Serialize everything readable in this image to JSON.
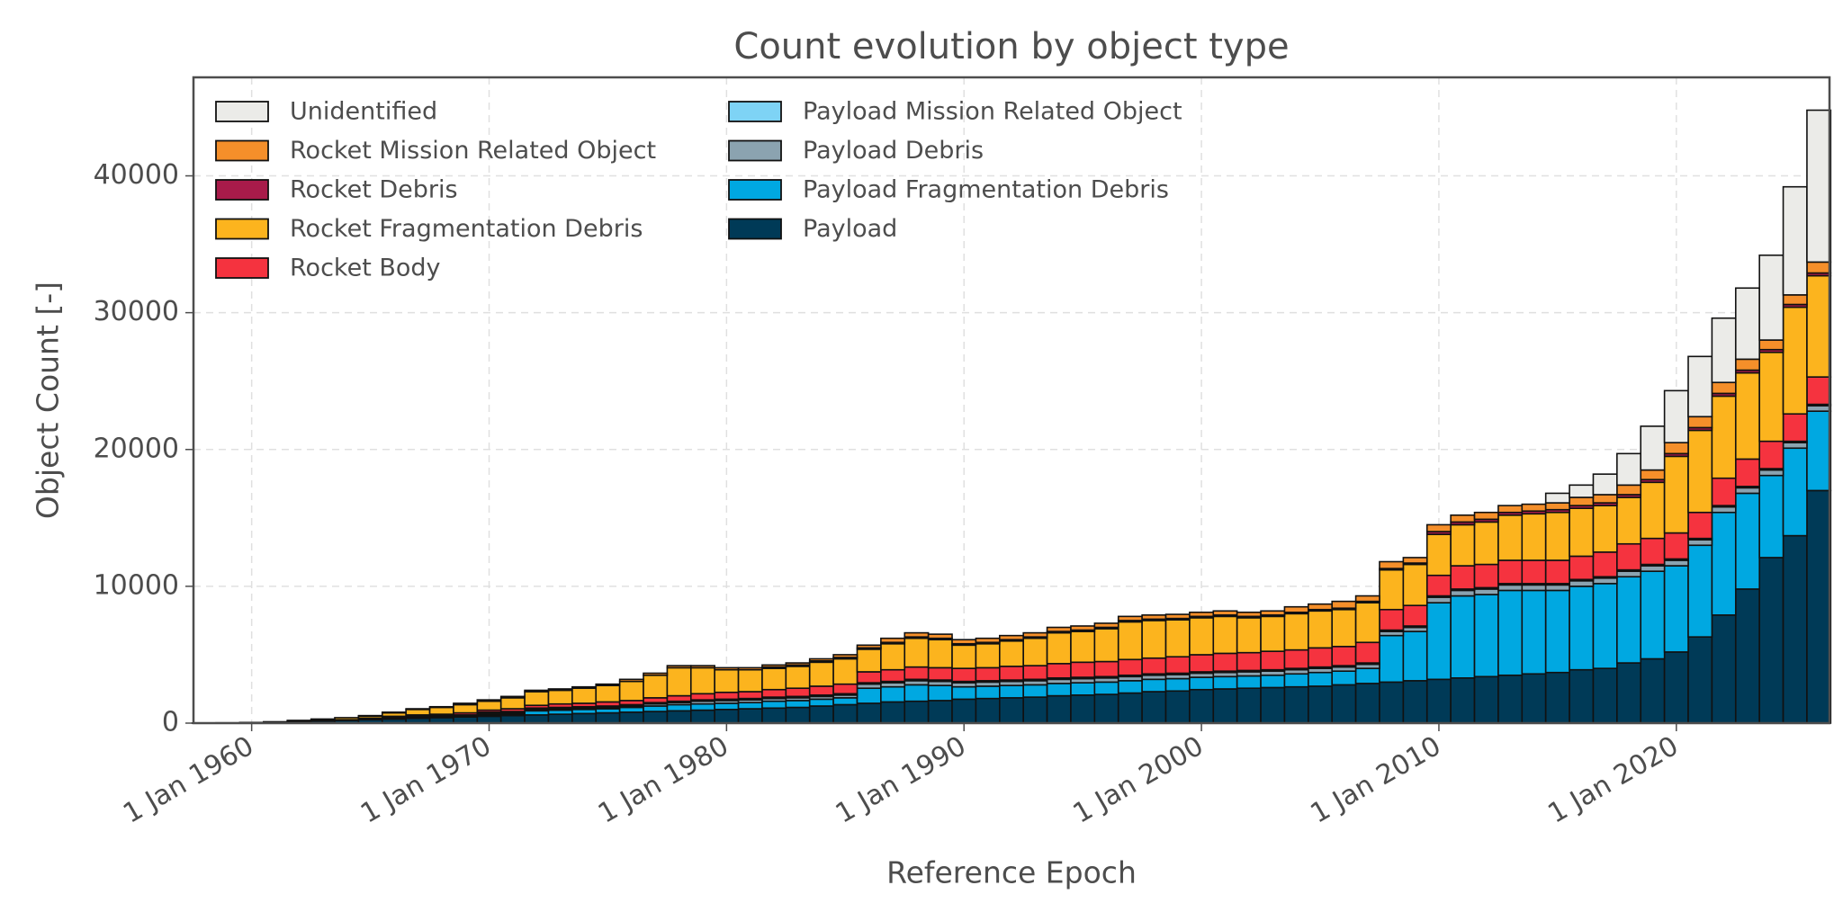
{
  "chart_data": {
    "type": "stacked_bar",
    "title": "Count evolution by object type",
    "xlabel": "Reference Epoch",
    "ylabel": "Object Count [-]",
    "legend": "upper left",
    "grid": true,
    "xlim": [
      1957.55,
      2026.45
    ],
    "ylim": [
      0,
      47200
    ],
    "yticks": [
      0,
      10000,
      20000,
      30000,
      40000
    ],
    "xticks": [
      {
        "value": 1960,
        "label": "1 Jan 1960"
      },
      {
        "value": 1970,
        "label": "1 Jan 1970"
      },
      {
        "value": 1980,
        "label": "1 Jan 1980"
      },
      {
        "value": 1990,
        "label": "1 Jan 1990"
      },
      {
        "value": 2000,
        "label": "1 Jan 2000"
      },
      {
        "value": 2010,
        "label": "1 Jan 2010"
      },
      {
        "value": 2020,
        "label": "1 Jan 2020"
      }
    ],
    "x": [
      1958,
      1959,
      1960,
      1961,
      1962,
      1963,
      1964,
      1965,
      1966,
      1967,
      1968,
      1969,
      1970,
      1971,
      1972,
      1973,
      1974,
      1975,
      1976,
      1977,
      1978,
      1979,
      1980,
      1981,
      1982,
      1983,
      1984,
      1985,
      1986,
      1987,
      1988,
      1989,
      1990,
      1991,
      1992,
      1993,
      1994,
      1995,
      1996,
      1997,
      1998,
      1999,
      2000,
      2001,
      2002,
      2003,
      2004,
      2005,
      2006,
      2007,
      2008,
      2009,
      2010,
      2011,
      2012,
      2013,
      2014,
      2015,
      2016,
      2017,
      2018,
      2019,
      2020,
      2021,
      2022,
      2023,
      2024,
      2025,
      2026
    ],
    "series": [
      {
        "name": "Payload",
        "color": "#003a57",
        "values": [
          5,
          10,
          30,
          50,
          100,
          150,
          200,
          250,
          300,
          350,
          400,
          450,
          500,
          550,
          600,
          650,
          700,
          750,
          800,
          850,
          900,
          950,
          1000,
          1050,
          1100,
          1150,
          1250,
          1350,
          1450,
          1550,
          1600,
          1650,
          1750,
          1800,
          1850,
          1900,
          2000,
          2050,
          2100,
          2200,
          2300,
          2350,
          2450,
          2500,
          2550,
          2600,
          2650,
          2700,
          2800,
          2900,
          3000,
          3100,
          3200,
          3300,
          3400,
          3500,
          3600,
          3700,
          3900,
          4000,
          4400,
          4700,
          5200,
          6300,
          7900,
          9800,
          12100,
          13700,
          17000
        ]
      },
      {
        "name": "Payload Fragmentation Debris",
        "color": "#00a8e1",
        "values": [
          0,
          0,
          0,
          0,
          0,
          0,
          0,
          0,
          0,
          50,
          50,
          50,
          100,
          100,
          300,
          300,
          300,
          300,
          350,
          400,
          450,
          450,
          450,
          450,
          500,
          500,
          500,
          500,
          1100,
          1100,
          1200,
          1100,
          900,
          900,
          900,
          900,
          900,
          900,
          900,
          900,
          900,
          900,
          900,
          900,
          900,
          900,
          950,
          1000,
          1000,
          1100,
          3400,
          3600,
          5600,
          6000,
          6000,
          6200,
          6100,
          6000,
          6100,
          6200,
          6300,
          6400,
          6300,
          6700,
          7500,
          7000,
          6000,
          6400,
          5800
        ]
      },
      {
        "name": "Payload Debris",
        "color": "#8ba3b0",
        "values": [
          0,
          0,
          0,
          0,
          0,
          0,
          0,
          0,
          50,
          50,
          50,
          50,
          100,
          100,
          100,
          100,
          100,
          100,
          100,
          150,
          150,
          200,
          200,
          200,
          200,
          200,
          200,
          200,
          300,
          300,
          300,
          300,
          300,
          300,
          300,
          300,
          300,
          300,
          300,
          300,
          300,
          300,
          300,
          300,
          300,
          300,
          300,
          300,
          300,
          300,
          300,
          300,
          400,
          400,
          400,
          400,
          400,
          400,
          400,
          400,
          400,
          400,
          400,
          400,
          400,
          400,
          400,
          400,
          400
        ]
      },
      {
        "name": "Payload Mission Related Object",
        "color": "#7ed3f5",
        "values": [
          0,
          0,
          0,
          0,
          0,
          0,
          0,
          50,
          50,
          50,
          50,
          50,
          100,
          100,
          100,
          100,
          100,
          100,
          100,
          100,
          100,
          100,
          100,
          100,
          100,
          100,
          100,
          100,
          100,
          100,
          100,
          100,
          100,
          100,
          100,
          100,
          100,
          100,
          100,
          100,
          100,
          100,
          100,
          100,
          100,
          100,
          100,
          100,
          100,
          100,
          100,
          100,
          100,
          100,
          100,
          100,
          100,
          100,
          100,
          100,
          100,
          100,
          100,
          100,
          100,
          100,
          100,
          100,
          100
        ]
      },
      {
        "name": "Rocket Body",
        "color": "#f5333f",
        "values": [
          5,
          10,
          10,
          20,
          50,
          50,
          50,
          50,
          100,
          100,
          100,
          150,
          150,
          200,
          200,
          250,
          250,
          300,
          300,
          350,
          400,
          450,
          500,
          500,
          550,
          600,
          650,
          700,
          800,
          850,
          900,
          900,
          950,
          950,
          1000,
          1000,
          1050,
          1100,
          1100,
          1150,
          1150,
          1200,
          1250,
          1300,
          1300,
          1350,
          1350,
          1400,
          1400,
          1500,
          1500,
          1500,
          1500,
          1700,
          1700,
          1700,
          1700,
          1700,
          1700,
          1800,
          1900,
          1900,
          1900,
          1900,
          2000,
          2000,
          2000,
          2000,
          2000
        ]
      },
      {
        "name": "Rocket Fragmentation Debris",
        "color": "#fcb41e",
        "values": [
          0,
          0,
          10,
          30,
          50,
          100,
          150,
          150,
          250,
          400,
          500,
          600,
          650,
          800,
          1000,
          1000,
          1100,
          1200,
          1400,
          1650,
          2050,
          1900,
          1650,
          1600,
          1550,
          1600,
          1750,
          1850,
          1650,
          1900,
          2100,
          2050,
          1700,
          1750,
          1850,
          2000,
          2250,
          2250,
          2400,
          2750,
          2750,
          2700,
          2700,
          2700,
          2550,
          2550,
          2650,
          2700,
          2700,
          2900,
          2900,
          3000,
          3000,
          3000,
          3100,
          3300,
          3400,
          3500,
          3500,
          3400,
          3400,
          4100,
          5600,
          6000,
          6000,
          6300,
          6500,
          7800,
          7400
        ]
      },
      {
        "name": "Rocket Debris",
        "color": "#a81b4a",
        "values": [
          0,
          0,
          0,
          0,
          0,
          0,
          0,
          0,
          0,
          0,
          0,
          0,
          0,
          0,
          0,
          0,
          0,
          0,
          0,
          0,
          0,
          0,
          0,
          0,
          100,
          100,
          100,
          100,
          100,
          100,
          100,
          100,
          100,
          100,
          100,
          100,
          100,
          100,
          100,
          100,
          100,
          100,
          100,
          100,
          100,
          100,
          100,
          100,
          100,
          100,
          100,
          100,
          200,
          200,
          200,
          200,
          200,
          200,
          200,
          200,
          200,
          200,
          200,
          200,
          200,
          200,
          200,
          200,
          200
        ]
      },
      {
        "name": "Rocket Mission Related Object",
        "color": "#f58f2a",
        "values": [
          0,
          0,
          0,
          0,
          0,
          0,
          0,
          50,
          50,
          50,
          50,
          100,
          100,
          100,
          100,
          100,
          100,
          100,
          150,
          150,
          150,
          150,
          150,
          150,
          150,
          150,
          150,
          200,
          200,
          300,
          300,
          300,
          300,
          300,
          300,
          300,
          300,
          300,
          300,
          300,
          300,
          300,
          300,
          300,
          300,
          300,
          400,
          400,
          500,
          400,
          500,
          400,
          500,
          500,
          500,
          500,
          500,
          500,
          600,
          600,
          700,
          700,
          800,
          800,
          800,
          800,
          700,
          700,
          800
        ]
      },
      {
        "name": "Unidentified",
        "color": "#ebebe8",
        "values": [
          0,
          0,
          0,
          0,
          0,
          0,
          0,
          0,
          0,
          0,
          0,
          0,
          0,
          0,
          0,
          0,
          0,
          0,
          0,
          0,
          0,
          0,
          0,
          0,
          0,
          0,
          0,
          0,
          0,
          0,
          0,
          0,
          0,
          0,
          0,
          0,
          0,
          0,
          0,
          0,
          0,
          0,
          0,
          0,
          0,
          0,
          0,
          0,
          0,
          0,
          0,
          0,
          0,
          0,
          0,
          0,
          0,
          700,
          900,
          1500,
          2300,
          3200,
          3800,
          4400,
          4700,
          5200,
          6200,
          7900,
          11100
        ]
      }
    ]
  }
}
